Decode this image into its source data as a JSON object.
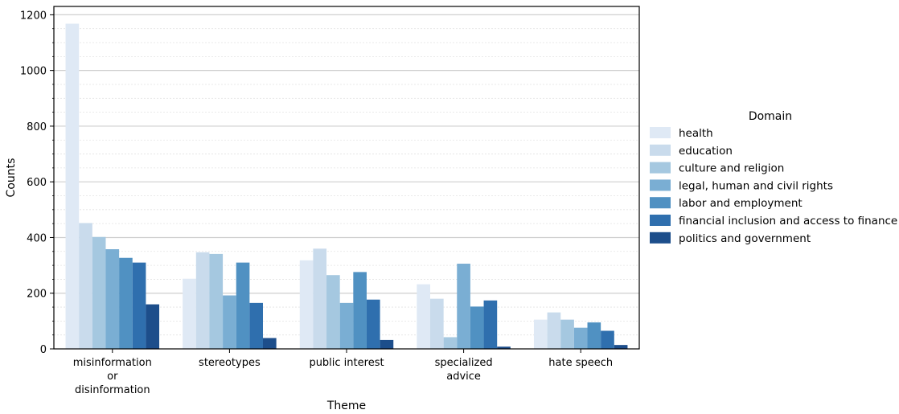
{
  "chart_data": {
    "type": "bar",
    "xlabel": "Theme",
    "ylabel": "Counts",
    "ylim": [
      0,
      1230
    ],
    "yticks": [
      0,
      200,
      400,
      600,
      800,
      1000,
      1200
    ],
    "grid": true,
    "legend_position": "right",
    "legend_title": "Domain",
    "categories": [
      [
        "misinformation",
        "or",
        "disinformation"
      ],
      [
        "stereotypes"
      ],
      [
        "public interest"
      ],
      [
        "specialized",
        "advice"
      ],
      [
        "hate speech"
      ]
    ],
    "series": [
      {
        "name": "health",
        "color": "#dfe9f5",
        "values": [
          1168,
          252,
          318,
          232,
          105
        ]
      },
      {
        "name": "education",
        "color": "#c9dbec",
        "values": [
          452,
          347,
          360,
          180,
          131
        ]
      },
      {
        "name": "culture and religion",
        "color": "#a5c8e0",
        "values": [
          402,
          341,
          265,
          42,
          105
        ]
      },
      {
        "name": "legal, human and civil rights",
        "color": "#7aaed3",
        "values": [
          358,
          192,
          165,
          306,
          76
        ]
      },
      {
        "name": "labor and employment",
        "color": "#5091c2",
        "values": [
          327,
          310,
          276,
          152,
          95
        ]
      },
      {
        "name": "financial inclusion and access to finance",
        "color": "#2f6fae",
        "values": [
          310,
          165,
          177,
          174,
          65
        ]
      },
      {
        "name": "politics and government",
        "color": "#1d4e8b",
        "values": [
          160,
          39,
          32,
          8,
          14
        ]
      }
    ]
  }
}
